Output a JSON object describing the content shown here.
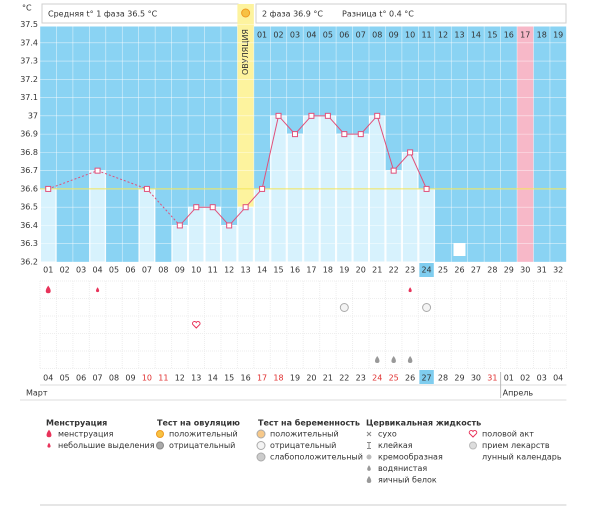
{
  "chart_data": {
    "type": "line",
    "y_unit": "°C",
    "header": {
      "phase1": "Средняя t° 1 фаза 36.5 °C",
      "phase2": "2 фаза 36.9 °C",
      "diff": "Разница t° 0.4 °C"
    },
    "ovulation_label": "ОВУЛЯЦИЯ",
    "ovulation_day": "13",
    "today_day": "24",
    "categories": [
      "01",
      "02",
      "03",
      "04",
      "05",
      "06",
      "07",
      "08",
      "09",
      "10",
      "11",
      "12",
      "13",
      "14",
      "15",
      "16",
      "17",
      "18",
      "19",
      "20",
      "21",
      "22",
      "23",
      "24",
      "25",
      "26",
      "27",
      "28",
      "29",
      "30",
      "31",
      "32"
    ],
    "values": [
      36.6,
      null,
      null,
      36.7,
      null,
      null,
      36.6,
      null,
      36.4,
      36.5,
      36.5,
      36.4,
      36.5,
      36.6,
      37,
      36.9,
      37,
      37,
      36.9,
      36.9,
      37,
      36.7,
      36.8,
      36.6,
      null,
      null,
      null,
      null,
      null,
      null,
      null,
      null
    ],
    "ylim": [
      36.2,
      37.5
    ],
    "yticks": [
      36.2,
      36.3,
      36.4,
      36.5,
      36.6,
      36.7,
      36.8,
      36.9,
      37,
      37.1,
      37.2,
      37.3,
      37.4,
      37.5
    ],
    "coverline": 36.6,
    "phase2_start": "14",
    "phase2_days": [
      "01",
      "02",
      "03",
      "04",
      "05",
      "06",
      "07",
      "08",
      "09",
      "10",
      "11",
      "12",
      "13",
      "14",
      "15",
      "16",
      "17",
      "18",
      "19"
    ],
    "phase2_highlight": "17",
    "dates": [
      "04",
      "05",
      "06",
      "07",
      "08",
      "09",
      "10",
      "11",
      "12",
      "13",
      "14",
      "15",
      "16",
      "17",
      "18",
      "19",
      "20",
      "21",
      "22",
      "23",
      "24",
      "25",
      "26",
      "27",
      "28",
      "29",
      "30",
      "31",
      "01",
      "02",
      "03",
      "04"
    ],
    "weekend": [
      false,
      false,
      false,
      false,
      false,
      false,
      true,
      true,
      false,
      false,
      false,
      false,
      false,
      true,
      true,
      false,
      false,
      false,
      false,
      false,
      true,
      true,
      false,
      false,
      false,
      false,
      false,
      true,
      false,
      false,
      false,
      false
    ],
    "months": [
      "Март",
      "Апрель"
    ],
    "colors": {
      "background": "#8ad3f3",
      "bar": "#d7f2fd",
      "line": "#e0507a",
      "ovulation": "#fdf39e",
      "highlight": "#f7b8c8",
      "coverline": "#f4e65a",
      "weekend": "#e03030",
      "today": "#7fcdef"
    },
    "legend": [
      {
        "title": "Менструация",
        "items": [
          "менструация",
          "небольшие выделения"
        ]
      },
      {
        "title": "Тест на овуляцию",
        "items": [
          "положительный",
          "отрицательный"
        ]
      },
      {
        "title": "Тест на беременность",
        "items": [
          "положительный",
          "отрицательный",
          "слабоположительный"
        ]
      },
      {
        "title": "Цервикальная жидкость",
        "items": [
          "сухо",
          "клейкая",
          "кремообразная",
          "водянистая",
          "яичный белок"
        ]
      },
      {
        "items": [
          "половой акт",
          "прием лекарств",
          "лунный календарь"
        ]
      }
    ],
    "events": [
      {
        "day": "01",
        "group": "Менструация",
        "kind": "менструация"
      },
      {
        "day": "04",
        "group": "Менструация",
        "kind": "небольшие выделения"
      },
      {
        "day": "23",
        "group": "Менструация",
        "kind": "небольшие выделения"
      },
      {
        "day": "19",
        "group": "Тест на беременность",
        "kind": "отрицательный"
      },
      {
        "day": "24",
        "group": "Тест на беременность",
        "kind": "отрицательный"
      },
      {
        "day": "10",
        "kind": "половой акт"
      },
      {
        "day": "21",
        "group": "Цервикальная жидкость",
        "kind": "яичный белок"
      },
      {
        "day": "22",
        "group": "Цервикальная жидкость",
        "kind": "яичный белок"
      },
      {
        "day": "23",
        "group": "Цервикальная жидкость",
        "kind": "яичный белок"
      },
      {
        "day": "26",
        "kind": "лунный календарь"
      }
    ]
  }
}
